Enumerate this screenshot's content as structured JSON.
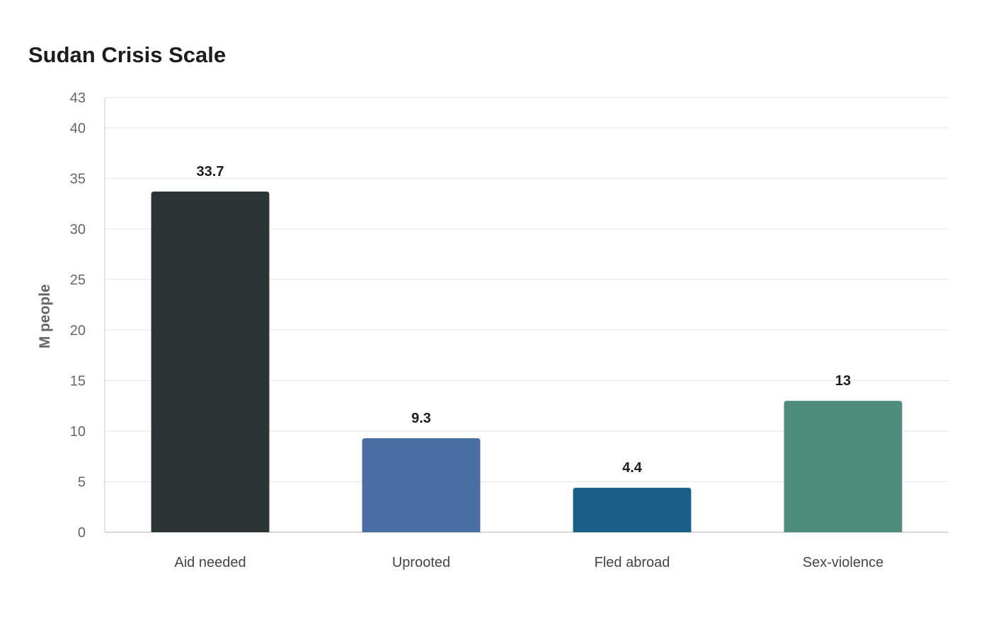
{
  "chart_data": {
    "type": "bar",
    "title": "Sudan Crisis Scale",
    "xlabel": "",
    "ylabel": "M people",
    "categories": [
      "Aid needed",
      "Uprooted",
      "Fled abroad",
      "Sex-violence"
    ],
    "values": [
      33.7,
      9.3,
      4.4,
      13
    ],
    "value_labels": [
      "33.7",
      "9.3",
      "4.4",
      "13"
    ],
    "colors": [
      "#2d3436",
      "#4a6da3",
      "#186087",
      "#4e8d7b"
    ],
    "ylim": [
      0,
      43
    ],
    "yticks": [
      0,
      5,
      10,
      15,
      20,
      25,
      30,
      35,
      40,
      43
    ],
    "grid": true,
    "legend": "none"
  }
}
